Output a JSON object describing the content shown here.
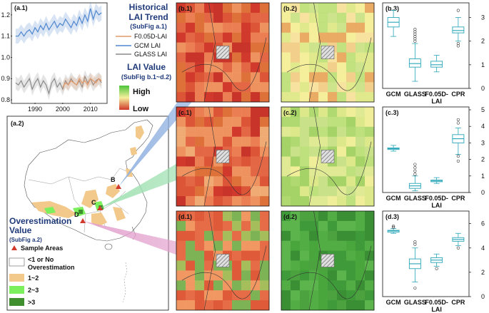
{
  "colors": {
    "gcm": "#4f86cf",
    "glass": "#8a8a8a",
    "f005": "#e39a6a",
    "box": "#2aa6b8",
    "title": "#1f3a7a",
    "low": "#d0392b",
    "high": "#4cc43a",
    "band1": "#f2c98a",
    "band2": "#7cf05c",
    "band3": "#3f8f2f",
    "sample": "#d0392b"
  },
  "panel_labels": {
    "a1": "(a.1)",
    "a2": "(a.2)",
    "b1": "(b.1)",
    "b2": "(b.2)",
    "b3": "(b.3)",
    "c1": "(c.1)",
    "c2": "(c.2)",
    "c3": "(c.3)",
    "d1": "(d.1)",
    "d2": "(d.2)",
    "d3": "(d.3)"
  },
  "trend_legend": {
    "title1": "Historical",
    "title2": "LAI Trend",
    "sub": "(SubFig a.1)",
    "items": [
      "F0.05D-LAI",
      "GCM LAI",
      "GLASS LAI"
    ]
  },
  "value_legend": {
    "title": "LAI Value",
    "sub": "(SubFig b.1~d.2)",
    "high": "High",
    "low": "Low"
  },
  "over_legend": {
    "title1": "Overestimation",
    "title2": "Value",
    "sub": "(SubFig a.2)",
    "sample": "Sample Areas",
    "items": [
      "<1 or No",
      "Overestimation",
      "1~2",
      "2~3",
      ">3"
    ]
  },
  "sample_letters": [
    "B",
    "C",
    "D"
  ],
  "chart_data": [
    {
      "type": "line",
      "x": [
        1983,
        1984,
        1985,
        1986,
        1987,
        1988,
        1989,
        1990,
        1991,
        1992,
        1993,
        1994,
        1995,
        1996,
        1997,
        1998,
        1999,
        2000,
        2001,
        2002,
        2003,
        2004,
        2005,
        2006,
        2007,
        2008,
        2009,
        2010,
        2011,
        2012,
        2013,
        2014
      ],
      "xticks": [
        1990,
        2000,
        2010
      ],
      "yticks": [
        0.8,
        0.9,
        1.0,
        1.1,
        1.2
      ],
      "ylim": [
        0.79,
        1.25
      ],
      "series": [
        {
          "name": "GCM LAI",
          "values": [
            1.1,
            1.1,
            1.12,
            1.1,
            1.12,
            1.13,
            1.11,
            1.14,
            1.12,
            1.15,
            1.13,
            1.16,
            1.13,
            1.15,
            1.17,
            1.14,
            1.16,
            1.15,
            1.18,
            1.16,
            1.14,
            1.17,
            1.15,
            1.19,
            1.16,
            1.2,
            1.17,
            1.23,
            1.18,
            1.22,
            1.2,
            1.21
          ]
        },
        {
          "name": "GLASS LAI",
          "values": [
            0.88,
            0.87,
            0.89,
            0.86,
            0.88,
            0.9,
            0.85,
            0.88,
            0.9,
            0.86,
            0.89,
            0.87,
            0.83,
            0.88,
            0.9,
            0.86,
            0.88,
            0.85,
            0.89,
            0.87,
            0.9,
            0.88,
            0.87,
            0.89,
            0.86,
            0.91,
            0.88,
            0.9,
            0.87,
            0.89,
            0.9,
            0.88
          ]
        },
        {
          "name": "F0.05D-LAI",
          "values": [
            null,
            null,
            null,
            null,
            null,
            null,
            null,
            null,
            null,
            null,
            null,
            null,
            null,
            null,
            null,
            null,
            null,
            0.86,
            0.88,
            0.87,
            0.89,
            0.88,
            0.87,
            0.9,
            0.88,
            0.89,
            0.87,
            0.9,
            0.89,
            0.88,
            0.9,
            0.89
          ]
        }
      ]
    },
    {
      "type": "box",
      "categories": [
        "GCM",
        "GLASS",
        "F0.05D-LAI",
        "CPR"
      ],
      "yticks": [
        0,
        1,
        2,
        3
      ],
      "ylim": [
        0,
        3.5
      ],
      "boxes": [
        [
          2.2,
          2.6,
          2.8,
          3.0,
          3.3
        ],
        [
          0.3,
          0.9,
          1.05,
          1.25,
          1.9
        ],
        [
          0.7,
          0.9,
          1.0,
          1.15,
          1.4
        ],
        [
          2.0,
          2.35,
          2.45,
          2.6,
          3.0
        ]
      ],
      "outliers": [
        [],
        [
          2.0,
          2.1,
          2.2,
          2.3,
          2.4,
          2.5
        ],
        [],
        [
          1.8,
          1.9,
          3.3
        ]
      ]
    },
    {
      "type": "box",
      "categories": [
        "GCM",
        "GLASS",
        "F0.05D-LAI",
        "CPR"
      ],
      "yticks": [
        0,
        1,
        2,
        3,
        4,
        5
      ],
      "ylim": [
        0,
        5
      ],
      "boxes": [
        [
          2.5,
          2.6,
          2.65,
          2.7,
          2.85
        ],
        [
          0.1,
          0.25,
          0.4,
          0.55,
          1.0
        ],
        [
          0.55,
          0.65,
          0.7,
          0.75,
          0.9
        ],
        [
          2.3,
          3.0,
          3.25,
          3.5,
          3.9
        ]
      ],
      "outliers": [
        [],
        [
          1.1,
          1.3,
          1.5,
          1.7
        ],
        [],
        [
          1.9,
          2.2,
          4.2,
          4.4
        ]
      ]
    },
    {
      "type": "box",
      "categories": [
        "GCM",
        "GLASS",
        "F0.05D-LAI",
        "CPR"
      ],
      "yticks": [
        0,
        2,
        4,
        6
      ],
      "ylim": [
        0,
        6.8
      ],
      "boxes": [
        [
          5.2,
          5.3,
          5.4,
          5.45,
          5.6
        ],
        [
          1.2,
          2.3,
          2.7,
          3.1,
          4.0
        ],
        [
          2.5,
          2.8,
          3.0,
          3.2,
          3.5
        ],
        [
          4.2,
          4.55,
          4.7,
          4.85,
          5.2
        ]
      ],
      "outliers": [
        [
          5.7,
          5.8
        ],
        [
          0.7,
          4.3,
          4.5
        ],
        [
          2.3
        ],
        [
          4.0
        ]
      ]
    }
  ]
}
